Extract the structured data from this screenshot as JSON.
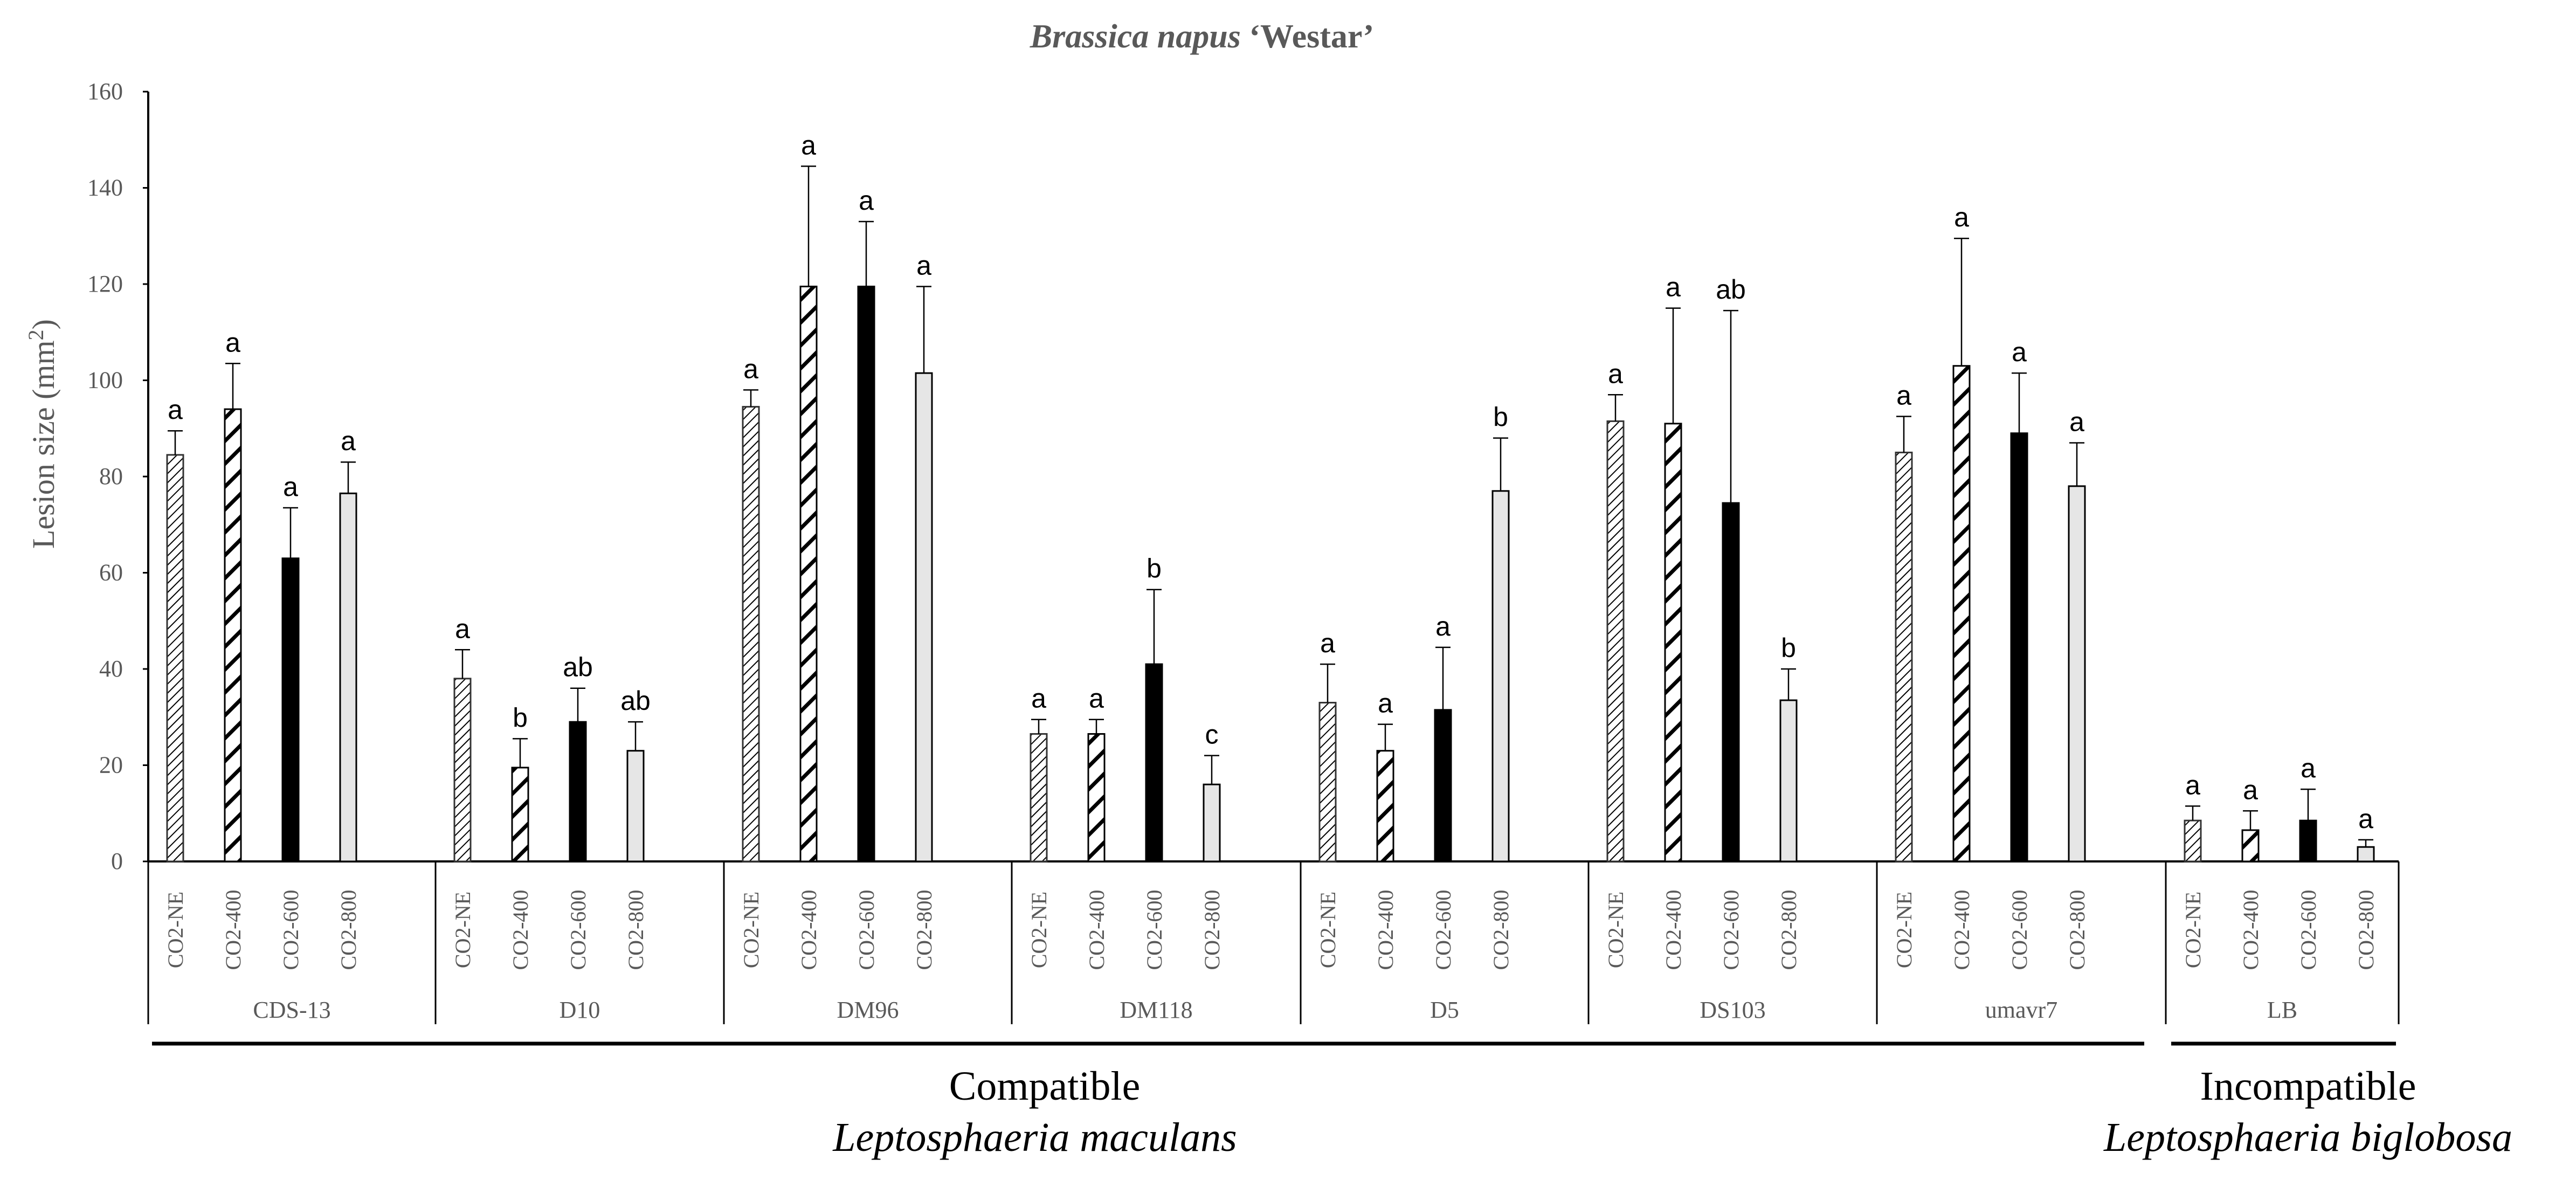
{
  "chart_data": {
    "type": "bar",
    "title": "Brassica napus ‘Westar’",
    "title_parts": [
      "Brassica napus",
      " ‘Westar’"
    ],
    "ylabel": "Lesion size (mm²)",
    "ylabel_parts": [
      "Lesion size (mm",
      "2",
      ")"
    ],
    "ylim": [
      0,
      160
    ],
    "yticks": [
      0,
      20,
      40,
      60,
      80,
      100,
      120,
      140,
      160
    ],
    "grid": false,
    "legend": "none",
    "treatments": [
      "CO2-NE",
      "CO2-400",
      "CO2-600",
      "CO2-800"
    ],
    "groups": [
      {
        "name": "CDS-13",
        "values": [
          84.5,
          94,
          63,
          76.5
        ],
        "errors": [
          5,
          9.5,
          10.5,
          6.5
        ],
        "letters": [
          "a",
          "a",
          "a",
          "a"
        ]
      },
      {
        "name": "D10",
        "values": [
          38,
          19.5,
          29,
          23
        ],
        "errors": [
          6,
          6,
          7,
          6
        ],
        "letters": [
          "a",
          "b",
          "ab",
          "ab"
        ]
      },
      {
        "name": "DM96",
        "values": [
          94.5,
          119.5,
          119.5,
          101.5
        ],
        "errors": [
          3.5,
          25,
          13.5,
          18
        ],
        "letters": [
          "a",
          "a",
          "a",
          "a"
        ]
      },
      {
        "name": "DM118",
        "values": [
          26.5,
          26.5,
          41,
          16
        ],
        "errors": [
          3,
          3,
          15.5,
          6
        ],
        "letters": [
          "a",
          "a",
          "b",
          "c"
        ]
      },
      {
        "name": "D5",
        "values": [
          33,
          23,
          31.5,
          77
        ],
        "errors": [
          8,
          5.5,
          13,
          11
        ],
        "letters": [
          "a",
          "a",
          "a",
          "b"
        ]
      },
      {
        "name": "DS103",
        "values": [
          91.5,
          91,
          74.5,
          33.5
        ],
        "errors": [
          5.5,
          24,
          40,
          6.5
        ],
        "letters": [
          "a",
          "a",
          "ab",
          "b"
        ]
      },
      {
        "name": "umavr7",
        "values": [
          85,
          103,
          89,
          78
        ],
        "errors": [
          7.5,
          26.5,
          12.5,
          9
        ],
        "letters": [
          "a",
          "a",
          "a",
          "a"
        ]
      },
      {
        "name": "LB",
        "values": [
          8.5,
          6.5,
          8.5,
          3
        ],
        "errors": [
          3,
          4,
          6.5,
          1.5
        ],
        "letters": [
          "a",
          "a",
          "a",
          "a"
        ]
      }
    ],
    "annotations": [
      {
        "label": "Compatible",
        "species": "Leptosphaeria maculans"
      },
      {
        "label": "Incompatible",
        "species": "Leptosphaeria biglobosa"
      }
    ]
  }
}
